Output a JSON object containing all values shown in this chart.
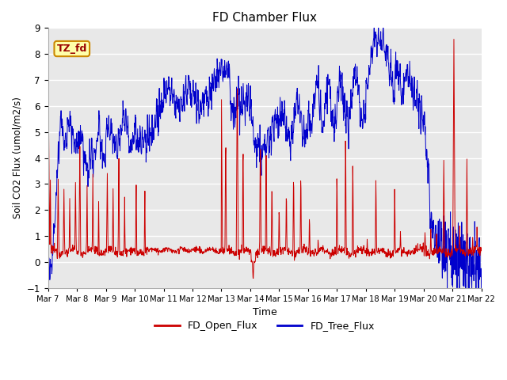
{
  "title": "FD Chamber Flux",
  "ylabel": "Soil CO2 Flux (umol/m2/s)",
  "xlabel": "Time",
  "annotation_text": "TZ_fd",
  "ylim": [
    -1.0,
    9.0
  ],
  "yticks": [
    -1.0,
    0.0,
    1.0,
    2.0,
    3.0,
    4.0,
    5.0,
    6.0,
    7.0,
    8.0,
    9.0
  ],
  "axes_facecolor": "#e8e8e8",
  "fig_facecolor": "#ffffff",
  "open_flux_color": "#cc0000",
  "tree_flux_color": "#0000cc",
  "linewidth": 0.7,
  "num_points": 1500,
  "annotation_facecolor": "#ffffaa",
  "annotation_edgecolor": "#cc8800",
  "annotation_textcolor": "#990000"
}
